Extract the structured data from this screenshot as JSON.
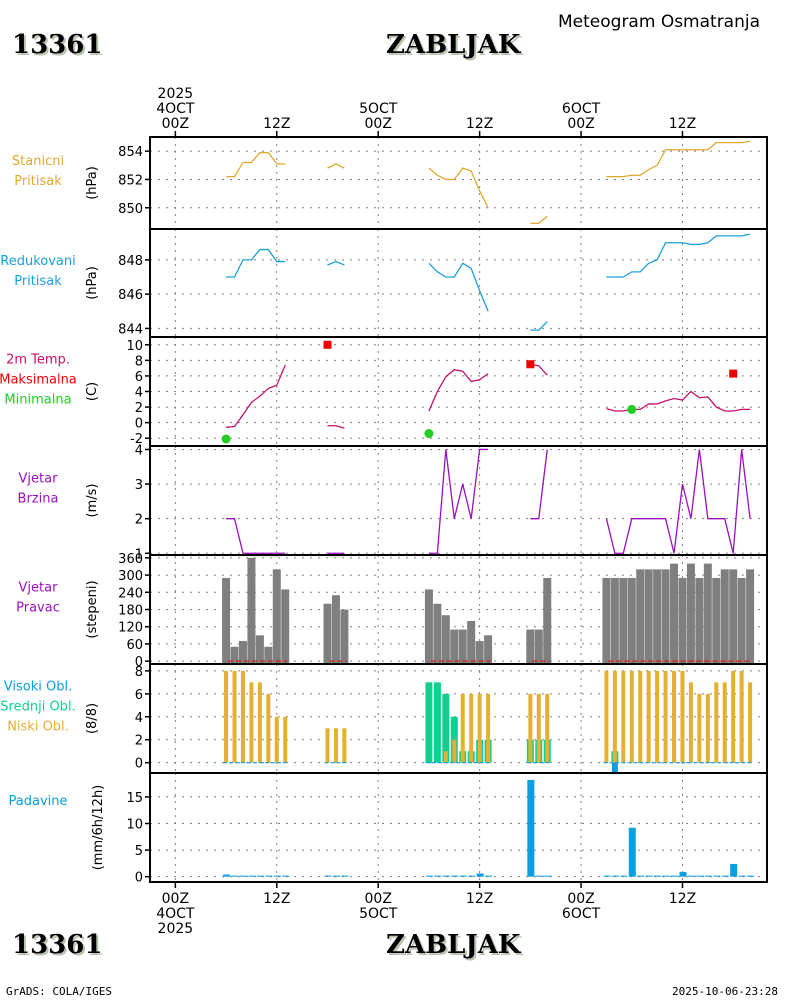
{
  "header": {
    "station_id": "13361",
    "station_name": "ZABLJAK",
    "subtitle": "Meteogram Osmatranja"
  },
  "footer": {
    "station_id": "13361",
    "station_name": "ZABLJAK",
    "credit": "GrADS: COLA/IGES",
    "timestamp": "2025-10-06-23:28"
  },
  "time_axis": {
    "start": "00Z 4OCT 2025",
    "range_hours": [
      -3,
      70
    ],
    "top_ticks": [
      {
        "h": 0,
        "lines": [
          "2025",
          "4OCT",
          "00Z"
        ]
      },
      {
        "h": 12,
        "lines": [
          "12Z"
        ]
      },
      {
        "h": 24,
        "lines": [
          "5OCT",
          "00Z"
        ]
      },
      {
        "h": 36,
        "lines": [
          "12Z"
        ]
      },
      {
        "h": 48,
        "lines": [
          "6OCT",
          "00Z"
        ]
      },
      {
        "h": 60,
        "lines": [
          "12Z"
        ]
      }
    ],
    "bottom_ticks": [
      {
        "h": 0,
        "lines": [
          "00Z",
          "4OCT",
          "2025"
        ]
      },
      {
        "h": 12,
        "lines": [
          "12Z"
        ]
      },
      {
        "h": 24,
        "lines": [
          "00Z",
          "5OCT"
        ]
      },
      {
        "h": 36,
        "lines": [
          "12Z"
        ]
      },
      {
        "h": 48,
        "lines": [
          "00Z",
          "6OCT"
        ]
      },
      {
        "h": 60,
        "lines": [
          "12Z"
        ]
      }
    ]
  },
  "colors": {
    "station_pressure": "#e0a830",
    "reduced_pressure": "#1aa0d8",
    "temp": "#c8106a",
    "tmax": "#ee0000",
    "tmin": "#22cc22",
    "wind_speed": "#9a10c0",
    "wind_dir_bar": "#7f7f7f",
    "wind_dir_base": "#dd1111",
    "cloud_high": "#0a9ee0",
    "cloud_mid": "#10d090",
    "cloud_low": "#e4b030",
    "precip": "#0a9ee0"
  },
  "chart_data": [
    {
      "type": "line",
      "id": "station_pressure",
      "labels": [
        "Stanicni",
        "Pritisak"
      ],
      "ylabel": "(hPa)",
      "ylim": [
        848.5,
        855
      ],
      "yticks": [
        850,
        852,
        854
      ],
      "series": [
        {
          "name": "Stanicni Pritisak",
          "segments": [
            {
              "x": [
                6,
                7,
                8,
                9,
                10,
                11,
                12,
                13
              ],
              "y": [
                852.2,
                852.2,
                853.2,
                853.2,
                853.9,
                853.9,
                853.1,
                853.1
              ]
            },
            {
              "x": [
                18,
                19,
                20
              ],
              "y": [
                852.8,
                853.1,
                852.8
              ]
            },
            {
              "x": [
                30,
                31,
                32,
                33,
                34,
                35,
                36,
                37
              ],
              "y": [
                852.8,
                852.3,
                852.0,
                852.0,
                852.8,
                852.6,
                851.2,
                850.0
              ]
            },
            {
              "x": [
                42,
                43,
                44
              ],
              "y": [
                848.9,
                848.9,
                849.4
              ]
            },
            {
              "x": [
                51,
                52,
                53,
                54,
                55,
                56,
                57,
                58,
                59,
                60,
                61,
                62,
                63,
                64,
                65,
                66,
                67,
                68
              ],
              "y": [
                852.2,
                852.2,
                852.2,
                852.3,
                852.3,
                852.7,
                853.0,
                854.1,
                854.1,
                854.1,
                854.1,
                854.1,
                854.1,
                854.6,
                854.6,
                854.6,
                854.6,
                854.7
              ]
            }
          ]
        }
      ]
    },
    {
      "type": "line",
      "id": "reduced_pressure",
      "labels": [
        "Redukovani",
        "Pritisak"
      ],
      "ylabel": "(hPa)",
      "ylim": [
        843.5,
        849.8
      ],
      "yticks": [
        844,
        846,
        848
      ],
      "series": [
        {
          "name": "Redukovani Pritisak",
          "segments": [
            {
              "x": [
                6,
                7,
                8,
                9,
                10,
                11,
                12,
                13
              ],
              "y": [
                847.0,
                847.0,
                848.0,
                848.0,
                848.6,
                848.6,
                847.9,
                847.9
              ]
            },
            {
              "x": [
                18,
                19,
                20
              ],
              "y": [
                847.7,
                847.9,
                847.7
              ]
            },
            {
              "x": [
                30,
                31,
                32,
                33,
                34,
                35,
                36,
                37
              ],
              "y": [
                847.8,
                847.3,
                847.0,
                847.0,
                847.8,
                847.5,
                846.2,
                845.0
              ]
            },
            {
              "x": [
                42,
                43,
                44
              ],
              "y": [
                843.9,
                843.9,
                844.4
              ]
            },
            {
              "x": [
                51,
                52,
                53,
                54,
                55,
                56,
                57,
                58,
                59,
                60,
                61,
                62,
                63,
                64,
                65,
                66,
                67,
                68
              ],
              "y": [
                847.0,
                847.0,
                847.0,
                847.3,
                847.3,
                847.8,
                848.0,
                849.0,
                849.0,
                849.0,
                848.9,
                848.9,
                849.0,
                849.4,
                849.4,
                849.4,
                849.4,
                849.5
              ]
            }
          ]
        }
      ]
    },
    {
      "type": "line",
      "id": "temperature",
      "labels": [
        "2m Temp.",
        "Maksimalna",
        "Minimalna"
      ],
      "ylabel": "(C)",
      "ylim": [
        -3,
        11
      ],
      "yticks": [
        -2,
        0,
        2,
        4,
        6,
        8,
        10
      ],
      "series": [
        {
          "name": "2m Temp.",
          "segments": [
            {
              "x": [
                6,
                7,
                8,
                9,
                10,
                11,
                12,
                13
              ],
              "y": [
                -0.6,
                -0.5,
                1.0,
                2.6,
                3.4,
                4.4,
                4.8,
                7.4
              ]
            },
            {
              "x": [
                18,
                19,
                20
              ],
              "y": [
                -0.4,
                -0.4,
                -0.7
              ]
            },
            {
              "x": [
                30,
                31,
                32,
                33,
                34,
                35,
                36,
                37
              ],
              "y": [
                1.5,
                4.0,
                5.9,
                6.8,
                6.6,
                5.3,
                5.5,
                6.3
              ]
            },
            {
              "x": [
                42,
                43,
                44
              ],
              "y": [
                7.5,
                7.3,
                6.1
              ]
            },
            {
              "x": [
                51,
                52,
                53,
                54,
                55,
                56,
                57,
                58,
                59,
                60,
                61,
                62,
                63,
                64,
                65,
                66,
                67,
                68
              ],
              "y": [
                1.8,
                1.5,
                1.5,
                1.7,
                1.7,
                2.4,
                2.4,
                2.8,
                3.1,
                2.9,
                4.0,
                3.2,
                3.3,
                2.0,
                1.5,
                1.5,
                1.7,
                1.7
              ]
            }
          ]
        },
        {
          "name": "Maksimalna",
          "points": [
            {
              "x": 18,
              "y": 10.0
            },
            {
              "x": 42,
              "y": 7.5
            },
            {
              "x": 66,
              "y": 6.3
            }
          ]
        },
        {
          "name": "Minimalna",
          "points": [
            {
              "x": 6,
              "y": -2.1
            },
            {
              "x": 30,
              "y": -1.4
            },
            {
              "x": 54,
              "y": 1.7
            }
          ]
        }
      ]
    },
    {
      "type": "line",
      "id": "wind_speed",
      "labels": [
        "Vjetar",
        "Brzina"
      ],
      "ylabel": "(m/s)",
      "ylim": [
        0.95,
        4.1
      ],
      "yticks": [
        1,
        2,
        3,
        4
      ],
      "series": [
        {
          "name": "Vjetar Brzina",
          "segments": [
            {
              "x": [
                6,
                7,
                8,
                9,
                10,
                11,
                12,
                13
              ],
              "y": [
                2,
                2,
                1,
                1,
                1,
                1,
                1,
                1
              ]
            },
            {
              "x": [
                18,
                19,
                20
              ],
              "y": [
                1,
                1,
                1
              ]
            },
            {
              "x": [
                30,
                31,
                32,
                33,
                34,
                35,
                36,
                37
              ],
              "y": [
                1,
                1,
                4,
                2,
                3,
                2,
                4,
                4
              ]
            },
            {
              "x": [
                42,
                43,
                44
              ],
              "y": [
                2,
                2,
                4
              ]
            },
            {
              "x": [
                51,
                52,
                53,
                54,
                55,
                56,
                57,
                58,
                59,
                60,
                61,
                62,
                63,
                64,
                65,
                66,
                67,
                68
              ],
              "y": [
                2,
                1,
                1,
                2,
                2,
                2,
                2,
                2,
                1,
                3,
                2,
                4,
                2,
                2,
                2,
                1,
                4,
                2
              ]
            }
          ]
        }
      ]
    },
    {
      "type": "bar",
      "id": "wind_direction",
      "labels": [
        "Vjetar",
        "Pravac"
      ],
      "ylabel": "(stepeni)",
      "ylim": [
        -10,
        370
      ],
      "yticks": [
        0,
        60,
        120,
        180,
        240,
        300,
        360
      ],
      "x": [
        6,
        7,
        8,
        9,
        10,
        11,
        12,
        13,
        18,
        19,
        20,
        30,
        31,
        32,
        33,
        34,
        35,
        36,
        37,
        42,
        43,
        44,
        51,
        52,
        53,
        54,
        55,
        56,
        57,
        58,
        59,
        60,
        61,
        62,
        63,
        64,
        65,
        66,
        67,
        68
      ],
      "values": [
        290,
        50,
        70,
        360,
        90,
        50,
        320,
        250,
        200,
        230,
        180,
        250,
        200,
        160,
        110,
        110,
        140,
        70,
        90,
        110,
        110,
        290,
        290,
        290,
        290,
        290,
        320,
        320,
        320,
        320,
        340,
        290,
        340,
        290,
        340,
        290,
        320,
        320,
        290,
        320
      ]
    },
    {
      "type": "bar",
      "id": "clouds",
      "labels": [
        "Visoki Obl.",
        "Srednji Obl.",
        "Niski Obl."
      ],
      "ylabel": "(8/8)",
      "ylim": [
        -0.9,
        8.6
      ],
      "yticks": [
        0,
        2,
        4,
        6,
        8
      ],
      "x": [
        6,
        7,
        8,
        9,
        10,
        11,
        12,
        13,
        18,
        19,
        20,
        30,
        31,
        32,
        33,
        34,
        35,
        36,
        37,
        42,
        43,
        44,
        51,
        52,
        53,
        54,
        55,
        56,
        57,
        58,
        59,
        60,
        61,
        62,
        63,
        64,
        65,
        66,
        67,
        68
      ],
      "series": [
        {
          "name": "Visoki Obl.",
          "values": [
            0,
            0,
            0,
            0,
            0,
            0,
            0,
            0,
            0,
            0,
            0,
            0,
            0,
            0,
            0,
            0,
            0,
            0,
            0,
            0,
            0,
            0,
            0,
            -1,
            0,
            0,
            0,
            0,
            0,
            0,
            0,
            0,
            0,
            0,
            0,
            0,
            0,
            0,
            0,
            0
          ]
        },
        {
          "name": "Srednji Obl.",
          "values": [
            0,
            0,
            0,
            0,
            0,
            0,
            0,
            0,
            0,
            0,
            0,
            7,
            7,
            6,
            4,
            1,
            1,
            2,
            2,
            2,
            2,
            2,
            0,
            1,
            0,
            0,
            0,
            0,
            0,
            0,
            0,
            0,
            0,
            0,
            0,
            0,
            0,
            0,
            0,
            0
          ]
        },
        {
          "name": "Niski Obl.",
          "values": [
            8,
            8,
            8,
            7,
            7,
            6,
            4,
            4,
            3,
            3,
            3,
            0,
            0,
            1,
            2,
            6,
            6,
            6,
            6,
            6,
            6,
            6,
            8,
            8,
            8,
            8,
            8,
            8,
            8,
            8,
            8,
            8,
            7,
            6,
            6,
            7,
            7,
            8,
            8,
            7
          ]
        }
      ]
    },
    {
      "type": "bar",
      "id": "precipitation",
      "labels": [
        "Padavine"
      ],
      "ylabel": "(mm/6h/12h)",
      "ylim": [
        -1,
        19.5
      ],
      "yticks": [
        0,
        5,
        10,
        15
      ],
      "x": [
        6,
        7,
        8,
        9,
        10,
        11,
        12,
        13,
        18,
        19,
        20,
        30,
        31,
        32,
        33,
        34,
        35,
        36,
        37,
        42,
        43,
        44,
        51,
        52,
        53,
        54,
        55,
        56,
        57,
        58,
        59,
        60,
        61,
        62,
        63,
        64,
        65,
        66,
        67,
        68
      ],
      "values": [
        0.4,
        0.2,
        0.2,
        0.2,
        0.2,
        0.2,
        0.2,
        0.2,
        0.2,
        0.2,
        0.2,
        0.2,
        0.2,
        0.2,
        0.2,
        0.2,
        0.2,
        0.6,
        0.2,
        18.2,
        0.2,
        0.2,
        0.2,
        0.2,
        0.2,
        9.2,
        0.2,
        0.2,
        0.2,
        0.2,
        0.2,
        0.9,
        0.2,
        0.2,
        0.2,
        0.2,
        0.2,
        2.4,
        0.2,
        0.2
      ]
    }
  ]
}
